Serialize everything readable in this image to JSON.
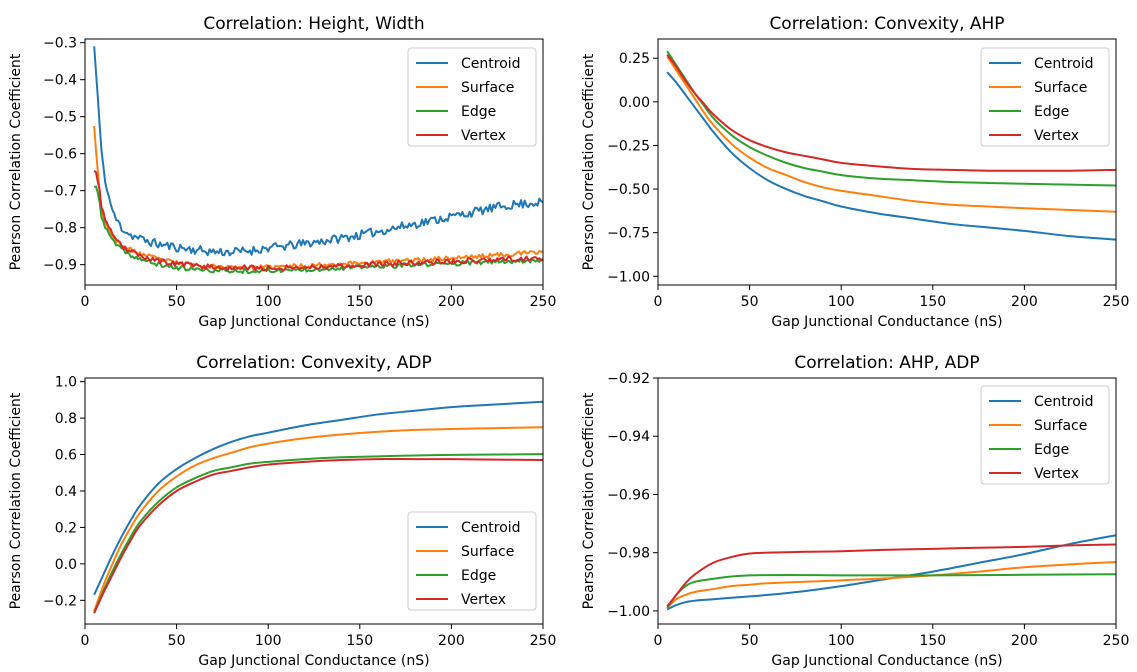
{
  "chart_data": [
    {
      "type": "line",
      "title": "Correlation: Height, Width",
      "xlabel": "Gap Junctional Conductance (nS)",
      "ylabel": "Pearson Correlation Coefficient",
      "xlim": [
        0,
        250
      ],
      "ylim": [
        -0.955,
        -0.29
      ],
      "xticks": [
        0,
        50,
        100,
        150,
        200,
        250
      ],
      "yticks": [
        -0.3,
        -0.4,
        -0.5,
        -0.6,
        -0.7,
        -0.8,
        -0.9
      ],
      "legend": "top-right",
      "series": [
        {
          "name": "Centroid",
          "color": "#1f77b4",
          "noise": 0.012,
          "seed": 11,
          "x": [
            5,
            7,
            9,
            12,
            16,
            20,
            25,
            30,
            40,
            50,
            60,
            70,
            80,
            90,
            100,
            110,
            120,
            130,
            140,
            150,
            160,
            170,
            180,
            190,
            200,
            210,
            220,
            230,
            240,
            250
          ],
          "y": [
            -0.31,
            -0.45,
            -0.6,
            -0.7,
            -0.77,
            -0.8,
            -0.82,
            -0.83,
            -0.845,
            -0.853,
            -0.86,
            -0.865,
            -0.866,
            -0.862,
            -0.855,
            -0.85,
            -0.843,
            -0.836,
            -0.828,
            -0.82,
            -0.81,
            -0.8,
            -0.79,
            -0.78,
            -0.77,
            -0.76,
            -0.75,
            -0.74,
            -0.735,
            -0.73
          ]
        },
        {
          "name": "Surface",
          "color": "#ff7f0e",
          "noise": 0.006,
          "seed": 23,
          "x": [
            5,
            7,
            9,
            12,
            16,
            20,
            25,
            30,
            40,
            50,
            60,
            70,
            80,
            90,
            100,
            110,
            120,
            130,
            140,
            150,
            160,
            170,
            180,
            190,
            200,
            210,
            220,
            230,
            240,
            250
          ],
          "y": [
            -0.52,
            -0.65,
            -0.75,
            -0.8,
            -0.83,
            -0.85,
            -0.86,
            -0.87,
            -0.885,
            -0.895,
            -0.9,
            -0.905,
            -0.908,
            -0.908,
            -0.907,
            -0.905,
            -0.903,
            -0.9,
            -0.898,
            -0.895,
            -0.893,
            -0.89,
            -0.888,
            -0.885,
            -0.882,
            -0.879,
            -0.876,
            -0.872,
            -0.869,
            -0.866
          ]
        },
        {
          "name": "Edge",
          "color": "#2ca02c",
          "noise": 0.006,
          "seed": 37,
          "x": [
            5,
            7,
            9,
            12,
            16,
            20,
            25,
            30,
            40,
            50,
            60,
            70,
            80,
            90,
            100,
            110,
            120,
            130,
            140,
            150,
            160,
            170,
            180,
            190,
            200,
            210,
            220,
            230,
            240,
            250
          ],
          "y": [
            -0.69,
            -0.7,
            -0.77,
            -0.81,
            -0.84,
            -0.86,
            -0.875,
            -0.885,
            -0.9,
            -0.908,
            -0.913,
            -0.916,
            -0.917,
            -0.917,
            -0.916,
            -0.915,
            -0.913,
            -0.911,
            -0.909,
            -0.907,
            -0.905,
            -0.903,
            -0.901,
            -0.899,
            -0.897,
            -0.895,
            -0.893,
            -0.891,
            -0.889,
            -0.887
          ]
        },
        {
          "name": "Vertex",
          "color": "#d62728",
          "noise": 0.007,
          "seed": 53,
          "x": [
            5,
            7,
            9,
            12,
            16,
            20,
            25,
            30,
            40,
            50,
            60,
            70,
            80,
            90,
            100,
            110,
            120,
            130,
            140,
            150,
            160,
            170,
            180,
            190,
            200,
            210,
            220,
            230,
            240,
            250
          ],
          "y": [
            -0.64,
            -0.67,
            -0.74,
            -0.79,
            -0.83,
            -0.85,
            -0.865,
            -0.875,
            -0.89,
            -0.898,
            -0.903,
            -0.906,
            -0.908,
            -0.909,
            -0.909,
            -0.908,
            -0.907,
            -0.905,
            -0.903,
            -0.901,
            -0.899,
            -0.897,
            -0.895,
            -0.893,
            -0.891,
            -0.889,
            -0.887,
            -0.885,
            -0.884,
            -0.882
          ]
        }
      ]
    },
    {
      "type": "line",
      "title": "Correlation: Convexity, AHP",
      "xlabel": "Gap Junctional Conductance (nS)",
      "ylabel": "Pearson Correlation Coefficient",
      "xlim": [
        0,
        250
      ],
      "ylim": [
        -1.05,
        0.36
      ],
      "xticks": [
        0,
        50,
        100,
        150,
        200,
        250
      ],
      "yticks": [
        "0.25",
        "0.00",
        "-0.25",
        "-0.50",
        "-0.75",
        "-1.00"
      ],
      "legend": "top-right",
      "series": [
        {
          "name": "Centroid",
          "color": "#1f77b4",
          "x": [
            5,
            10,
            15,
            20,
            25,
            30,
            40,
            50,
            60,
            70,
            80,
            90,
            100,
            120,
            140,
            160,
            180,
            200,
            225,
            250
          ],
          "y": [
            0.17,
            0.11,
            0.04,
            -0.03,
            -0.1,
            -0.17,
            -0.29,
            -0.38,
            -0.45,
            -0.5,
            -0.54,
            -0.57,
            -0.6,
            -0.64,
            -0.67,
            -0.7,
            -0.72,
            -0.74,
            -0.77,
            -0.79
          ]
        },
        {
          "name": "Surface",
          "color": "#ff7f0e",
          "x": [
            5,
            10,
            15,
            20,
            25,
            30,
            40,
            50,
            60,
            70,
            80,
            90,
            100,
            120,
            140,
            160,
            180,
            200,
            225,
            250
          ],
          "y": [
            0.26,
            0.18,
            0.1,
            0.02,
            -0.06,
            -0.13,
            -0.24,
            -0.32,
            -0.38,
            -0.42,
            -0.46,
            -0.49,
            -0.51,
            -0.54,
            -0.57,
            -0.59,
            -0.6,
            -0.61,
            -0.62,
            -0.63
          ]
        },
        {
          "name": "Edge",
          "color": "#2ca02c",
          "x": [
            5,
            10,
            15,
            20,
            25,
            30,
            40,
            50,
            60,
            70,
            80,
            90,
            100,
            120,
            140,
            160,
            180,
            200,
            225,
            250
          ],
          "y": [
            0.29,
            0.21,
            0.13,
            0.05,
            -0.02,
            -0.09,
            -0.19,
            -0.26,
            -0.31,
            -0.35,
            -0.38,
            -0.4,
            -0.42,
            -0.44,
            -0.45,
            -0.46,
            -0.465,
            -0.47,
            -0.475,
            -0.48
          ]
        },
        {
          "name": "Vertex",
          "color": "#d62728",
          "x": [
            5,
            10,
            15,
            20,
            25,
            30,
            40,
            50,
            60,
            70,
            80,
            90,
            100,
            120,
            140,
            160,
            180,
            200,
            225,
            250
          ],
          "y": [
            0.27,
            0.2,
            0.12,
            0.05,
            -0.01,
            -0.07,
            -0.16,
            -0.22,
            -0.26,
            -0.29,
            -0.31,
            -0.33,
            -0.35,
            -0.37,
            -0.385,
            -0.39,
            -0.395,
            -0.395,
            -0.395,
            -0.39
          ]
        }
      ]
    },
    {
      "type": "line",
      "title": "Correlation: Convexity, ADP",
      "xlabel": "Gap Junctional Conductance (nS)",
      "ylabel": "Pearson Correlation Coefficient",
      "xlim": [
        0,
        250
      ],
      "ylim": [
        -0.33,
        1.02
      ],
      "xticks": [
        0,
        50,
        100,
        150,
        200,
        250
      ],
      "yticks": [
        "1.0",
        "0.8",
        "0.6",
        "0.4",
        "0.2",
        "0.0",
        "-0.2"
      ],
      "legend": "bottom-right",
      "series": [
        {
          "name": "Centroid",
          "color": "#1f77b4",
          "x": [
            5,
            10,
            15,
            20,
            25,
            30,
            40,
            50,
            60,
            70,
            80,
            90,
            100,
            120,
            140,
            160,
            180,
            200,
            225,
            250
          ],
          "y": [
            -0.17,
            -0.06,
            0.05,
            0.15,
            0.24,
            0.32,
            0.44,
            0.52,
            0.58,
            0.63,
            0.67,
            0.7,
            0.72,
            0.76,
            0.79,
            0.82,
            0.84,
            0.86,
            0.875,
            0.89
          ]
        },
        {
          "name": "Surface",
          "color": "#ff7f0e",
          "x": [
            5,
            10,
            15,
            20,
            25,
            30,
            40,
            50,
            60,
            70,
            80,
            90,
            100,
            120,
            140,
            160,
            180,
            200,
            225,
            250
          ],
          "y": [
            -0.26,
            -0.12,
            0.0,
            0.11,
            0.2,
            0.28,
            0.4,
            0.48,
            0.54,
            0.58,
            0.61,
            0.64,
            0.66,
            0.69,
            0.71,
            0.725,
            0.735,
            0.74,
            0.745,
            0.75
          ]
        },
        {
          "name": "Edge",
          "color": "#2ca02c",
          "x": [
            5,
            10,
            15,
            20,
            25,
            30,
            40,
            50,
            60,
            70,
            80,
            90,
            100,
            120,
            140,
            160,
            180,
            200,
            225,
            250
          ],
          "y": [
            -0.27,
            -0.15,
            -0.04,
            0.06,
            0.15,
            0.23,
            0.34,
            0.42,
            0.47,
            0.51,
            0.53,
            0.55,
            0.56,
            0.575,
            0.585,
            0.59,
            0.595,
            0.598,
            0.6,
            0.602
          ]
        },
        {
          "name": "Vertex",
          "color": "#d62728",
          "x": [
            5,
            10,
            15,
            20,
            25,
            30,
            40,
            50,
            60,
            70,
            80,
            90,
            100,
            120,
            140,
            160,
            180,
            200,
            225,
            250
          ],
          "y": [
            -0.27,
            -0.16,
            -0.06,
            0.04,
            0.13,
            0.21,
            0.32,
            0.4,
            0.45,
            0.49,
            0.51,
            0.53,
            0.545,
            0.56,
            0.57,
            0.575,
            0.575,
            0.575,
            0.572,
            0.57
          ]
        }
      ]
    },
    {
      "type": "line",
      "title": "Correlation: AHP, ADP",
      "xlabel": "Gap Junctional Conductance (nS)",
      "ylabel": "Pearson Correlation Coefficient",
      "xlim": [
        0,
        250
      ],
      "ylim": [
        -1.0045,
        -0.92
      ],
      "xticks": [
        0,
        50,
        100,
        150,
        200,
        250
      ],
      "yticks": [
        "-0.92",
        "-0.94",
        "-0.96",
        "-0.98",
        "-1.00"
      ],
      "legend": "top-right",
      "series": [
        {
          "name": "Centroid",
          "color": "#1f77b4",
          "x": [
            5,
            10,
            15,
            20,
            30,
            40,
            50,
            60,
            80,
            100,
            125,
            150,
            175,
            200,
            225,
            250
          ],
          "y": [
            -0.9995,
            -0.998,
            -0.997,
            -0.9965,
            -0.996,
            -0.9955,
            -0.995,
            -0.9945,
            -0.9932,
            -0.9915,
            -0.989,
            -0.9865,
            -0.9835,
            -0.9805,
            -0.977,
            -0.974
          ]
        },
        {
          "name": "Surface",
          "color": "#ff7f0e",
          "x": [
            5,
            10,
            15,
            20,
            30,
            40,
            50,
            60,
            80,
            100,
            125,
            150,
            175,
            200,
            225,
            250
          ],
          "y": [
            -0.999,
            -0.996,
            -0.9945,
            -0.9935,
            -0.9925,
            -0.9915,
            -0.991,
            -0.9905,
            -0.99,
            -0.9895,
            -0.9888,
            -0.9878,
            -0.9865,
            -0.985,
            -0.984,
            -0.9832
          ]
        },
        {
          "name": "Edge",
          "color": "#2ca02c",
          "x": [
            5,
            10,
            15,
            20,
            30,
            40,
            50,
            60,
            80,
            100,
            125,
            150,
            175,
            200,
            225,
            250
          ],
          "y": [
            -0.999,
            -0.9945,
            -0.9915,
            -0.99,
            -0.989,
            -0.9882,
            -0.9878,
            -0.9877,
            -0.9877,
            -0.9878,
            -0.9878,
            -0.9878,
            -0.9877,
            -0.9876,
            -0.9875,
            -0.9874
          ]
        },
        {
          "name": "Vertex",
          "color": "#d62728",
          "x": [
            5,
            10,
            15,
            20,
            30,
            40,
            50,
            60,
            80,
            100,
            125,
            150,
            175,
            200,
            225,
            250
          ],
          "y": [
            -0.9985,
            -0.9945,
            -0.9905,
            -0.9875,
            -0.9835,
            -0.9815,
            -0.9803,
            -0.98,
            -0.9797,
            -0.9795,
            -0.979,
            -0.9787,
            -0.9783,
            -0.978,
            -0.9775,
            -0.9772
          ]
        }
      ]
    }
  ]
}
